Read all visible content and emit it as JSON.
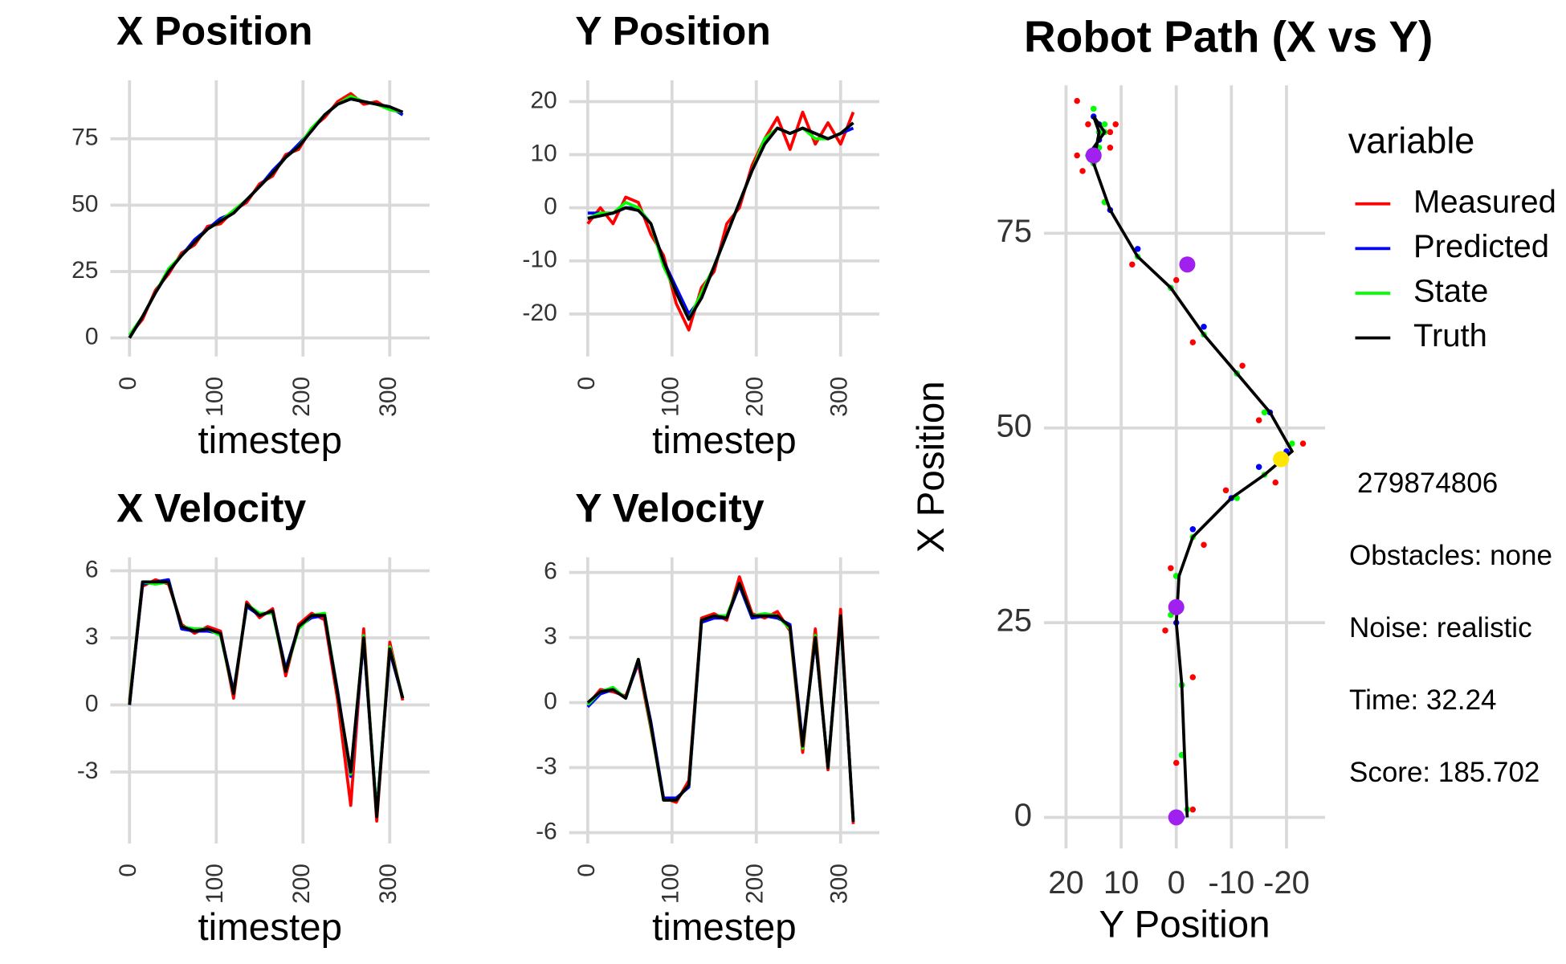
{
  "chart_data": [
    {
      "type": "line",
      "title": "X Position",
      "x_label": "timestep",
      "x": [
        0,
        15,
        30,
        45,
        60,
        75,
        90,
        105,
        120,
        135,
        150,
        165,
        180,
        195,
        210,
        225,
        240,
        255,
        270,
        285,
        300,
        315
      ],
      "xlim": [
        -22,
        346
      ],
      "xticks": [
        0,
        100,
        200,
        300
      ],
      "ylim": [
        -7,
        97
      ],
      "yticks": [
        0,
        25,
        50,
        75
      ],
      "grid": true,
      "series": [
        {
          "color": "#ff0000",
          "values": [
            1,
            7,
            18,
            24,
            32,
            35,
            42,
            43,
            48,
            51,
            58,
            61,
            69,
            71,
            79,
            83,
            89,
            92,
            88,
            89,
            86,
            85
          ]
        },
        {
          "color": "#0000ff",
          "values": [
            0,
            8,
            17,
            25,
            31,
            37,
            41,
            45,
            47,
            52,
            57,
            63,
            68,
            73,
            78,
            84,
            88,
            90,
            89,
            88,
            87,
            84
          ]
        },
        {
          "color": "#00ff00",
          "values": [
            1,
            8,
            17,
            26,
            31,
            36,
            41,
            44,
            48,
            52,
            57,
            62,
            68,
            72,
            79,
            84,
            88,
            91,
            89,
            88,
            86,
            85
          ]
        },
        {
          "color": "#000000",
          "values": [
            0,
            8,
            17,
            25,
            31,
            36,
            41,
            44,
            47,
            52,
            57,
            62,
            68,
            72,
            78,
            84,
            88,
            90,
            89,
            88,
            87,
            85
          ]
        }
      ]
    },
    {
      "type": "line",
      "title": "Y Position",
      "x_label": "timestep",
      "x": [
        0,
        15,
        30,
        45,
        60,
        75,
        90,
        105,
        120,
        135,
        150,
        165,
        180,
        195,
        210,
        225,
        240,
        255,
        270,
        285,
        300,
        315
      ],
      "xlim": [
        -22,
        346
      ],
      "xticks": [
        0,
        100,
        200,
        300
      ],
      "ylim": [
        -28,
        24
      ],
      "yticks": [
        -20,
        -10,
        0,
        10,
        20
      ],
      "grid": true,
      "series": [
        {
          "color": "#ff0000",
          "values": [
            -3,
            0,
            -3,
            2,
            1,
            -5,
            -9,
            -18,
            -23,
            -15,
            -12,
            -3,
            0,
            8,
            13,
            17,
            11,
            18,
            12,
            16,
            12,
            18
          ]
        },
        {
          "color": "#0000ff",
          "values": [
            -1,
            -1,
            -1,
            0,
            0,
            -3,
            -10,
            -15,
            -20,
            -17,
            -11,
            -5,
            1,
            7,
            12,
            15,
            14,
            15,
            14,
            13,
            14,
            15
          ]
        },
        {
          "color": "#00ff00",
          "values": [
            -2,
            -1,
            -1,
            1,
            0,
            -3,
            -11,
            -16,
            -21,
            -16,
            -11,
            -5,
            1,
            7,
            13,
            15,
            14,
            15,
            13,
            13,
            14,
            16
          ]
        },
        {
          "color": "#000000",
          "values": [
            -2,
            -1.5,
            -1,
            0,
            -0.5,
            -3,
            -10,
            -16,
            -21,
            -17,
            -11,
            -5,
            1,
            7,
            12,
            15,
            14,
            15,
            14,
            13,
            14,
            16
          ]
        }
      ]
    },
    {
      "type": "line",
      "title": "X Velocity",
      "x_label": "timestep",
      "x": [
        0,
        15,
        30,
        45,
        60,
        75,
        90,
        105,
        120,
        135,
        150,
        165,
        180,
        195,
        210,
        225,
        240,
        255,
        270,
        285,
        300,
        315
      ],
      "xlim": [
        -22,
        346
      ],
      "xticks": [
        0,
        100,
        200,
        300
      ],
      "ylim": [
        -6.2,
        6.6
      ],
      "yticks": [
        -3,
        0,
        3,
        6
      ],
      "grid": true,
      "series": [
        {
          "color": "#ff0000",
          "values": [
            0.2,
            5.3,
            5.6,
            5.4,
            3.6,
            3.2,
            3.5,
            3.3,
            0.3,
            4.6,
            3.9,
            4.3,
            1.3,
            3.6,
            4.1,
            3.8,
            0.2,
            -4.5,
            3.4,
            -5.2,
            2.8,
            0.2
          ]
        },
        {
          "color": "#0000ff",
          "values": [
            0,
            5.4,
            5.5,
            5.6,
            3.4,
            3.3,
            3.3,
            3.2,
            0.6,
            4.4,
            4.0,
            4.2,
            1.6,
            3.5,
            3.9,
            4.0,
            0.6,
            -3.2,
            2.9,
            -4.8,
            2.4,
            0.3
          ]
        },
        {
          "color": "#00ff00",
          "values": [
            0.1,
            5.5,
            5.4,
            5.5,
            3.5,
            3.4,
            3.4,
            3.1,
            0.5,
            4.5,
            4.1,
            4.1,
            1.5,
            3.4,
            4.0,
            4.1,
            0.5,
            -3.1,
            3.1,
            -4.9,
            2.6,
            0.3
          ]
        },
        {
          "color": "#000000",
          "values": [
            0,
            5.5,
            5.5,
            5.5,
            3.5,
            3.3,
            3.4,
            3.2,
            0.5,
            4.5,
            4.0,
            4.2,
            1.5,
            3.5,
            4.0,
            4.0,
            0.5,
            -3.0,
            3.0,
            -5.0,
            2.5,
            0.3
          ]
        }
      ]
    },
    {
      "type": "line",
      "title": "Y Velocity",
      "x_label": "timestep",
      "x": [
        0,
        15,
        30,
        45,
        60,
        75,
        90,
        105,
        120,
        135,
        150,
        165,
        180,
        195,
        210,
        225,
        240,
        255,
        270,
        285,
        300,
        315
      ],
      "xlim": [
        -22,
        346
      ],
      "xticks": [
        0,
        100,
        200,
        300
      ],
      "ylim": [
        -6.5,
        6.7
      ],
      "yticks": [
        -6,
        -3,
        0,
        3,
        6
      ],
      "grid": true,
      "series": [
        {
          "color": "#ff0000",
          "values": [
            -0.1,
            0.6,
            0.5,
            0.3,
            1.8,
            -1.2,
            -4.4,
            -4.6,
            -3.6,
            3.9,
            4.1,
            3.8,
            5.8,
            4.1,
            3.9,
            4.2,
            3.3,
            -2.3,
            3.4,
            -3.1,
            4.3,
            -5.6
          ]
        },
        {
          "color": "#0000ff",
          "values": [
            -0.2,
            0.4,
            0.6,
            0.2,
            1.9,
            -0.9,
            -4.4,
            -4.4,
            -3.9,
            3.7,
            3.9,
            3.9,
            5.4,
            3.9,
            4.0,
            3.9,
            3.6,
            -1.9,
            2.9,
            -2.9,
            3.9,
            -5.4
          ]
        },
        {
          "color": "#00ff00",
          "values": [
            -0.1,
            0.5,
            0.7,
            0.2,
            2.0,
            -1.1,
            -4.5,
            -4.5,
            -3.8,
            3.8,
            4.0,
            4.0,
            5.5,
            4.0,
            4.1,
            4.0,
            3.4,
            -2.1,
            3.1,
            -3.0,
            4.0,
            -5.5
          ]
        },
        {
          "color": "#000000",
          "values": [
            0,
            0.5,
            0.6,
            0.2,
            2.0,
            -1.0,
            -4.5,
            -4.5,
            -3.8,
            3.8,
            4.0,
            3.9,
            5.5,
            4.0,
            4.0,
            4.0,
            3.5,
            -2.0,
            3.0,
            -3.0,
            4.0,
            -5.5
          ]
        }
      ]
    },
    {
      "type": "path",
      "title": "Robot Path (X vs Y)",
      "x_label": "Y Position",
      "y_label": "X Position",
      "xlim": [
        24,
        -27
      ],
      "xticks": [
        20,
        10,
        0,
        -10,
        -20
      ],
      "ylim": [
        -4,
        94
      ],
      "yticks": [
        0,
        25,
        50,
        75
      ],
      "grid": true,
      "legend_title": "variable",
      "legend": "right",
      "series": [
        {
          "name": "Measured",
          "color": "#ff0000",
          "marker": "point",
          "x": [
            -3,
            0,
            -3,
            2,
            1,
            -5,
            -9,
            -18,
            -23,
            -15,
            -12,
            -3,
            0,
            8,
            13,
            17,
            11,
            18,
            12,
            16,
            12,
            18
          ],
          "y": [
            1,
            7,
            18,
            24,
            32,
            35,
            42,
            43,
            48,
            51,
            58,
            61,
            69,
            71,
            79,
            83,
            89,
            92,
            88,
            89,
            86,
            85
          ]
        },
        {
          "name": "Predicted",
          "color": "#0000ff",
          "marker": "point",
          "x": [
            -1,
            -1,
            -1,
            0,
            0,
            -3,
            -10,
            -15,
            -20,
            -17,
            -11,
            -5,
            1,
            7,
            12,
            15,
            14,
            15,
            14,
            13,
            14,
            15
          ],
          "y": [
            0,
            8,
            17,
            25,
            31,
            37,
            41,
            45,
            47,
            52,
            57,
            63,
            68,
            73,
            78,
            84,
            88,
            90,
            89,
            88,
            87,
            84
          ]
        },
        {
          "name": "State",
          "color": "#00ff00",
          "marker": "point",
          "x": [
            -2,
            -1,
            -1,
            1,
            0,
            -3,
            -11,
            -16,
            -21,
            -16,
            -11,
            -5,
            1,
            7,
            13,
            15,
            14,
            15,
            13,
            13,
            14,
            16
          ],
          "y": [
            1,
            8,
            17,
            26,
            31,
            36,
            41,
            44,
            48,
            52,
            57,
            62,
            68,
            72,
            79,
            84,
            88,
            91,
            89,
            88,
            86,
            85
          ]
        },
        {
          "name": "Truth",
          "color": "#000000",
          "marker": "line",
          "x": [
            -2,
            -1.5,
            -1,
            0,
            -0.5,
            -3,
            -10,
            -16,
            -21,
            -17,
            -11,
            -5,
            1,
            7,
            12,
            15,
            14,
            15,
            14,
            13,
            14,
            16
          ],
          "y": [
            0,
            8,
            17,
            25,
            31,
            36,
            41,
            44,
            47,
            52,
            57,
            62,
            68,
            72,
            78,
            84,
            88,
            90,
            89,
            88,
            87,
            85
          ]
        }
      ],
      "points": [
        {
          "x": 15,
          "y": 85,
          "color": "#a020f0"
        },
        {
          "x": -2,
          "y": 71,
          "color": "#a020f0"
        },
        {
          "x": -19,
          "y": 46,
          "color": "#ffe600"
        },
        {
          "x": 0,
          "y": 27,
          "color": "#a020f0"
        },
        {
          "x": 0,
          "y": 0,
          "color": "#a020f0"
        }
      ],
      "annotations": [
        "279874806",
        "Obstacles: none",
        "Noise: realistic",
        "Time: 32.24",
        "Score: 185.702"
      ]
    }
  ]
}
